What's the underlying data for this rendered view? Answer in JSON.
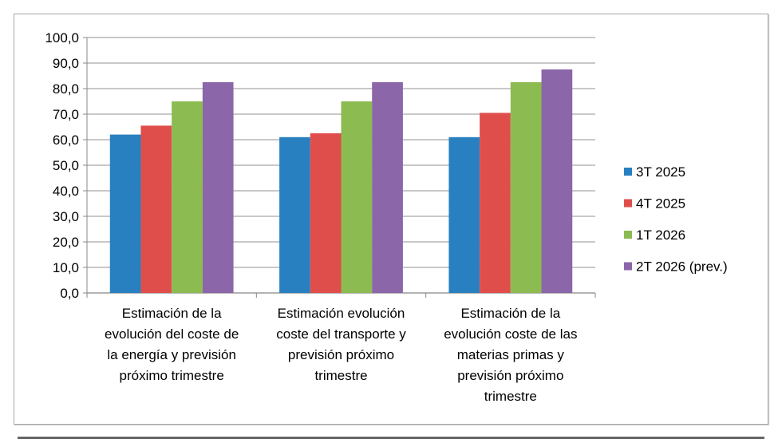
{
  "chart_data": {
    "type": "bar",
    "title": "",
    "xlabel": "",
    "ylabel": "",
    "ylim": [
      0,
      100
    ],
    "yticks": [
      "0,0",
      "10,0",
      "20,0",
      "30,0",
      "40,0",
      "50,0",
      "60,0",
      "70,0",
      "80,0",
      "90,0",
      "100,0"
    ],
    "grid": true,
    "legend_position": "right",
    "categories": [
      [
        "Estimación de la",
        "evolución del coste de",
        "la energía y previsión",
        "próximo trimestre"
      ],
      [
        "Estimación evolución",
        "coste del transporte y",
        "previsión próximo",
        "trimestre"
      ],
      [
        "Estimación de la",
        "evolución coste de las",
        "materias primas y",
        "previsión próximo",
        "trimestre"
      ]
    ],
    "series": [
      {
        "name": "3T 2025",
        "color": "#2980c0",
        "values": [
          62.0,
          61.0,
          61.0
        ]
      },
      {
        "name": "4T 2025",
        "color": "#e04e4c",
        "values": [
          65.5,
          62.5,
          70.5
        ]
      },
      {
        "name": "1T 2026",
        "color": "#8cbb51",
        "values": [
          75.0,
          75.0,
          82.5
        ]
      },
      {
        "name": "2T 2026 (prev.)",
        "color": "#8b66a8",
        "values": [
          82.5,
          82.5,
          87.5
        ]
      }
    ]
  }
}
